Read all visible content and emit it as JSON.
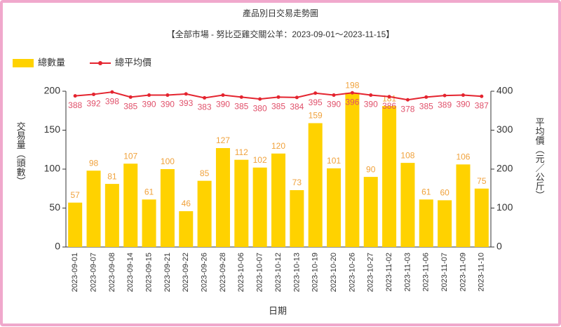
{
  "chart_data": {
    "type": "bar-line",
    "title": "產品別日交易走勢圖",
    "subtitle": "【全部市場 - 努比亞雞交關公羊：2023-09-01～2023-11-15】",
    "x_label": "日期",
    "y_label": "交易量（頭數）",
    "y2_label": "平均價（元／公斤）",
    "categories": [
      "2023-09-01",
      "2023-09-07",
      "2023-09-08",
      "2023-09-14",
      "2023-09-15",
      "2023-09-21",
      "2023-09-22",
      "2023-09-26",
      "2023-09-28",
      "2023-10-06",
      "2023-10-07",
      "2023-10-12",
      "2023-10-13",
      "2023-10-19",
      "2023-10-20",
      "2023-10-26",
      "2023-10-27",
      "2023-11-02",
      "2023-11-03",
      "2023-11-06",
      "2023-11-07",
      "2023-11-09",
      "2023-11-10"
    ],
    "series": [
      {
        "name": "總數量",
        "type": "bar",
        "color": "#ffd200",
        "label_color": "#f0a23c",
        "values": [
          57,
          98,
          81,
          107,
          61,
          100,
          46,
          85,
          127,
          112,
          102,
          120,
          73,
          159,
          101,
          198,
          90,
          181,
          108,
          61,
          60,
          106,
          75
        ]
      },
      {
        "name": "總平均價",
        "type": "line",
        "axis": "y2",
        "color": "#e4242f",
        "label_color": "#e0506a",
        "values": [
          388,
          392,
          398,
          385,
          390,
          390,
          393,
          383,
          390,
          385,
          380,
          385,
          384,
          395,
          390,
          396,
          390,
          386,
          378,
          385,
          389,
          390,
          387
        ]
      }
    ],
    "ylim": [
      0,
      200
    ],
    "yticks": [
      0,
      50,
      100,
      150,
      200
    ],
    "y2lim": [
      0,
      400
    ],
    "y2ticks": [
      0,
      100,
      200,
      300,
      400
    ],
    "legend": "top-left"
  }
}
